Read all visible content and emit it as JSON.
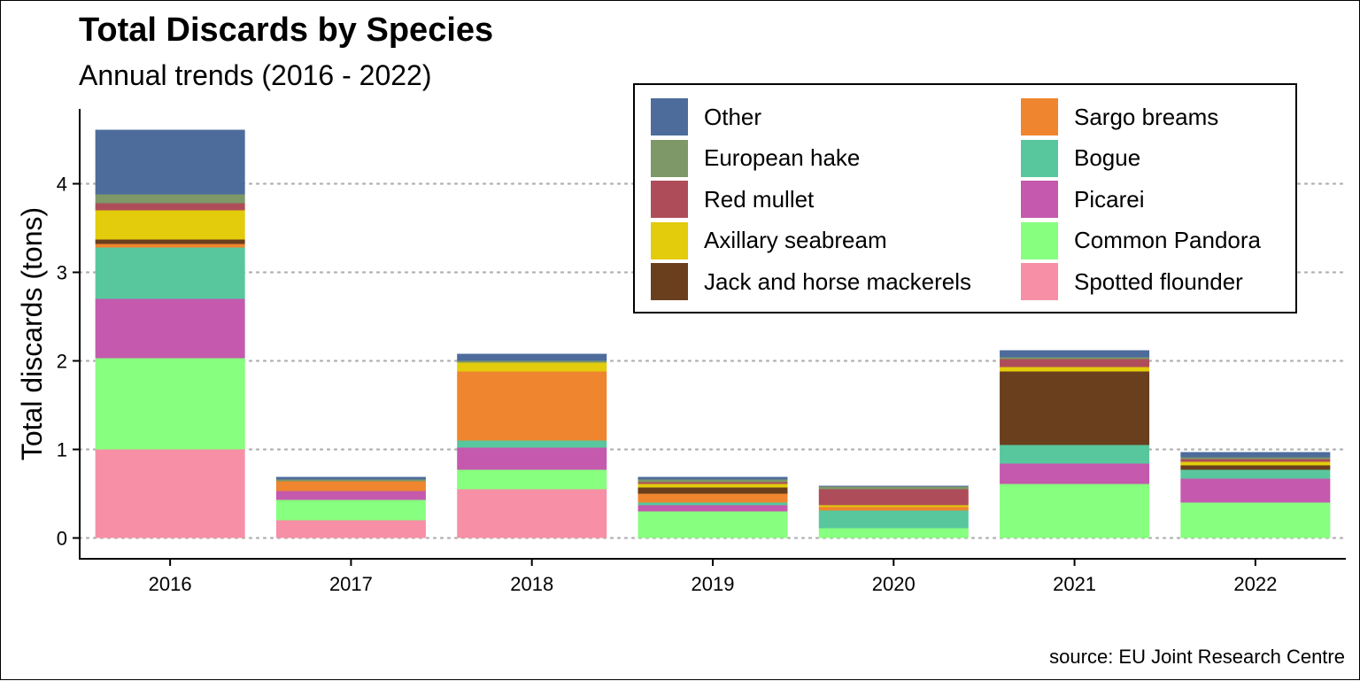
{
  "chart_data": {
    "type": "bar",
    "stacked": true,
    "title": "Total Discards by Species",
    "subtitle": "Annual trends (2016 - 2022)",
    "caption": "source: EU Joint Research Centre",
    "xlabel": "",
    "ylabel": "Total discards (tons)",
    "ylim": [
      0,
      4.8
    ],
    "yticks": [
      0,
      1,
      2,
      3,
      4
    ],
    "grid": "horizontal dotted",
    "legend_position": "top-right",
    "categories": [
      "2016",
      "2017",
      "2018",
      "2019",
      "2020",
      "2021",
      "2022"
    ],
    "series": [
      {
        "name": "Spotted flounder",
        "color": "#F78FA7",
        "values": [
          1.0,
          0.2,
          0.55,
          0.0,
          0.0,
          0.0,
          0.0
        ]
      },
      {
        "name": "Common Pandora",
        "color": "#87FF7F",
        "values": [
          1.03,
          0.23,
          0.22,
          0.3,
          0.11,
          0.61,
          0.4
        ]
      },
      {
        "name": "Picarei",
        "color": "#C459AE",
        "values": [
          0.67,
          0.1,
          0.25,
          0.07,
          0.0,
          0.23,
          0.27
        ]
      },
      {
        "name": "Bogue",
        "color": "#58C79E",
        "values": [
          0.58,
          0.0,
          0.08,
          0.03,
          0.2,
          0.21,
          0.1
        ]
      },
      {
        "name": "Sargo breams",
        "color": "#EF852E",
        "values": [
          0.04,
          0.11,
          0.78,
          0.1,
          0.04,
          0.0,
          0.0
        ]
      },
      {
        "name": "Jack and horse mackerels",
        "color": "#6A3F1E",
        "values": [
          0.05,
          0.0,
          0.0,
          0.07,
          0.0,
          0.83,
          0.05
        ]
      },
      {
        "name": "Axillary seabream",
        "color": "#E2CC0B",
        "values": [
          0.33,
          0.0,
          0.1,
          0.04,
          0.02,
          0.05,
          0.04
        ]
      },
      {
        "name": "Red mullet",
        "color": "#AE4D59",
        "values": [
          0.08,
          0.0,
          0.0,
          0.02,
          0.18,
          0.09,
          0.03
        ]
      },
      {
        "name": "European hake",
        "color": "#7E9867",
        "values": [
          0.1,
          0.02,
          0.02,
          0.03,
          0.03,
          0.02,
          0.02
        ]
      },
      {
        "name": "Other",
        "color": "#4D6C9C",
        "values": [
          0.73,
          0.03,
          0.08,
          0.03,
          0.01,
          0.08,
          0.06
        ]
      }
    ],
    "legend_entries": [
      {
        "name": "Other",
        "color": "#4D6C9C"
      },
      {
        "name": "European hake",
        "color": "#7E9867"
      },
      {
        "name": "Red mullet",
        "color": "#AE4D59"
      },
      {
        "name": "Axillary seabream",
        "color": "#E2CC0B"
      },
      {
        "name": "Jack and horse mackerels",
        "color": "#6A3F1E"
      },
      {
        "name": "Sargo breams",
        "color": "#EF852E"
      },
      {
        "name": "Bogue",
        "color": "#58C79E"
      },
      {
        "name": "Picarei",
        "color": "#C459AE"
      },
      {
        "name": "Common Pandora",
        "color": "#87FF7F"
      },
      {
        "name": "Spotted flounder",
        "color": "#F78FA7"
      }
    ]
  }
}
